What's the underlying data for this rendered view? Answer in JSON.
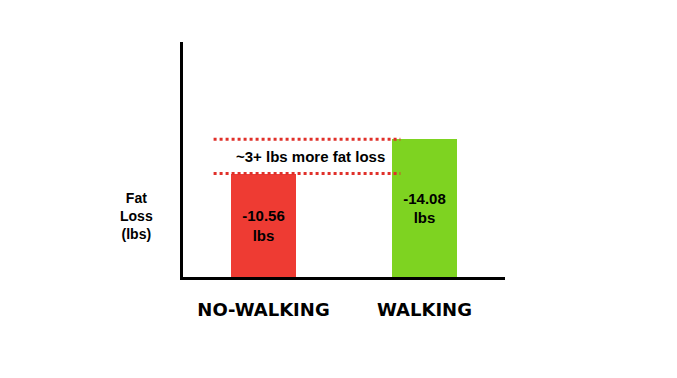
{
  "chart_data": {
    "type": "bar",
    "categories": [
      "NO-WALKING",
      "WALKING"
    ],
    "values": [
      -10.56,
      -14.08
    ],
    "value_labels": [
      "-10.56 lbs",
      "-14.08 lbs"
    ],
    "data_labels": true,
    "colors": [
      "#ee3b33",
      "#7ed321"
    ],
    "y_label": "Fat Loss (lbs)",
    "annotation": "~3+ lbs more fat loss",
    "ylim": [
      0,
      -24
    ],
    "yticks": [],
    "tick_labels": "x",
    "grid": false
  }
}
